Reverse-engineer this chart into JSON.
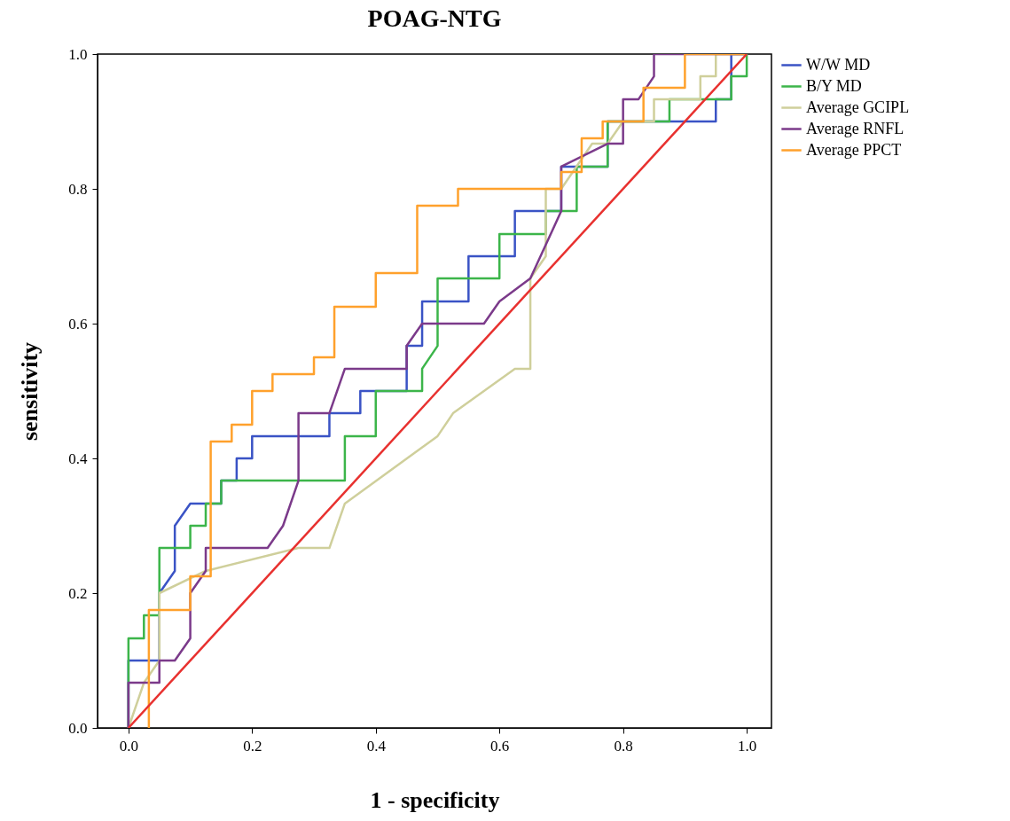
{
  "chart_data": {
    "type": "line",
    "title": "POAG-NTG",
    "xlabel": "1 - specificity",
    "ylabel": "sensitivity",
    "xlim": [
      -0.05,
      1.04
    ],
    "ylim": [
      0,
      1
    ],
    "xticks": [
      {
        "value": 0,
        "label": "0.0"
      },
      {
        "value": 0.2,
        "label": "0.2"
      },
      {
        "value": 0.4,
        "label": "0.4"
      },
      {
        "value": 0.6,
        "label": "0.6"
      },
      {
        "value": 0.8,
        "label": "0.8"
      },
      {
        "value": 1,
        "label": "1.0"
      }
    ],
    "yticks": [
      {
        "value": 0,
        "label": "0.0"
      },
      {
        "value": 0.2,
        "label": "0.2"
      },
      {
        "value": 0.4,
        "label": "0.4"
      },
      {
        "value": 0.6,
        "label": "0.6"
      },
      {
        "value": 0.8,
        "label": "0.8"
      },
      {
        "value": 1,
        "label": "1.0"
      }
    ],
    "grid": false,
    "legend": "top right",
    "line_style": "solid",
    "marker": "none",
    "series": [
      {
        "name": "W/W MD",
        "color": "#3a53c5",
        "x": [
          0,
          0,
          0.05,
          0.05,
          0.075,
          0.075,
          0.1,
          0.15,
          0.15,
          0.175,
          0.175,
          0.2,
          0.2,
          0.325,
          0.325,
          0.375,
          0.375,
          0.45,
          0.45,
          0.475,
          0.475,
          0.55,
          0.55,
          0.625,
          0.625,
          0.7,
          0.7,
          0.775,
          0.775,
          0.95,
          0.95,
          0.975,
          0.975,
          1
        ],
        "values": [
          0,
          0.1,
          0.1,
          0.2,
          0.233,
          0.3,
          0.333,
          0.333,
          0.367,
          0.367,
          0.4,
          0.4,
          0.433,
          0.433,
          0.467,
          0.467,
          0.5,
          0.5,
          0.567,
          0.567,
          0.633,
          0.633,
          0.7,
          0.7,
          0.767,
          0.767,
          0.833,
          0.833,
          0.9,
          0.9,
          0.933,
          0.933,
          1,
          1
        ]
      },
      {
        "name": "B/Y MD",
        "color": "#3cb54a",
        "x": [
          0,
          0,
          0.025,
          0.025,
          0.05,
          0.05,
          0.1,
          0.1,
          0.125,
          0.125,
          0.15,
          0.15,
          0.35,
          0.35,
          0.4,
          0.4,
          0.475,
          0.475,
          0.5,
          0.5,
          0.6,
          0.6,
          0.675,
          0.675,
          0.725,
          0.725,
          0.775,
          0.775,
          0.875,
          0.875,
          0.975,
          0.975,
          1,
          1
        ],
        "values": [
          0,
          0.133,
          0.133,
          0.167,
          0.167,
          0.267,
          0.267,
          0.3,
          0.3,
          0.333,
          0.333,
          0.367,
          0.367,
          0.433,
          0.433,
          0.5,
          0.5,
          0.533,
          0.567,
          0.667,
          0.667,
          0.733,
          0.733,
          0.767,
          0.767,
          0.833,
          0.833,
          0.9,
          0.9,
          0.933,
          0.933,
          0.967,
          0.967,
          1
        ]
      },
      {
        "name": "Average GCIPL",
        "color": "#cfcf9b",
        "x": [
          0,
          0.025,
          0.05,
          0.05,
          0.125,
          0.275,
          0.325,
          0.35,
          0.5,
          0.525,
          0.625,
          0.65,
          0.65,
          0.675,
          0.675,
          0.7,
          0.75,
          0.775,
          0.8,
          0.85,
          0.85,
          0.925,
          0.925,
          0.95,
          0.95,
          1
        ],
        "values": [
          0,
          0.067,
          0.1,
          0.2,
          0.233,
          0.267,
          0.267,
          0.333,
          0.433,
          0.467,
          0.533,
          0.533,
          0.667,
          0.7,
          0.8,
          0.8,
          0.867,
          0.867,
          0.9,
          0.9,
          0.933,
          0.933,
          0.967,
          0.967,
          1,
          1
        ]
      },
      {
        "name": "Average RNFL",
        "color": "#7b3a8a",
        "x": [
          0,
          0,
          0.05,
          0.05,
          0.075,
          0.1,
          0.1,
          0.125,
          0.125,
          0.225,
          0.25,
          0.275,
          0.275,
          0.325,
          0.35,
          0.45,
          0.45,
          0.475,
          0.575,
          0.6,
          0.65,
          0.7,
          0.7,
          0.775,
          0.8,
          0.8,
          0.825,
          0.85,
          0.85,
          1
        ],
        "values": [
          0,
          0.067,
          0.067,
          0.1,
          0.1,
          0.133,
          0.2,
          0.233,
          0.267,
          0.267,
          0.3,
          0.367,
          0.467,
          0.467,
          0.533,
          0.533,
          0.567,
          0.6,
          0.6,
          0.633,
          0.667,
          0.767,
          0.833,
          0.867,
          0.867,
          0.933,
          0.933,
          0.967,
          1,
          1
        ]
      },
      {
        "name": "Average PPCT",
        "color": "#ffa12c",
        "x": [
          0.033,
          0.033,
          0.1,
          0.1,
          0.133,
          0.133,
          0.167,
          0.167,
          0.2,
          0.2,
          0.233,
          0.233,
          0.3,
          0.3,
          0.333,
          0.333,
          0.4,
          0.4,
          0.467,
          0.467,
          0.533,
          0.533,
          0.7,
          0.7,
          0.733,
          0.733,
          0.767,
          0.767,
          0.833,
          0.833,
          0.9,
          0.9,
          1
        ],
        "values": [
          0,
          0.175,
          0.175,
          0.225,
          0.225,
          0.425,
          0.425,
          0.45,
          0.45,
          0.5,
          0.5,
          0.525,
          0.525,
          0.55,
          0.55,
          0.625,
          0.625,
          0.675,
          0.675,
          0.775,
          0.775,
          0.8,
          0.8,
          0.825,
          0.825,
          0.875,
          0.875,
          0.9,
          0.9,
          0.95,
          0.95,
          1,
          1
        ]
      },
      {
        "color": "#e8312f",
        "x": [
          0,
          1
        ],
        "values": [
          0,
          1
        ]
      }
    ]
  }
}
